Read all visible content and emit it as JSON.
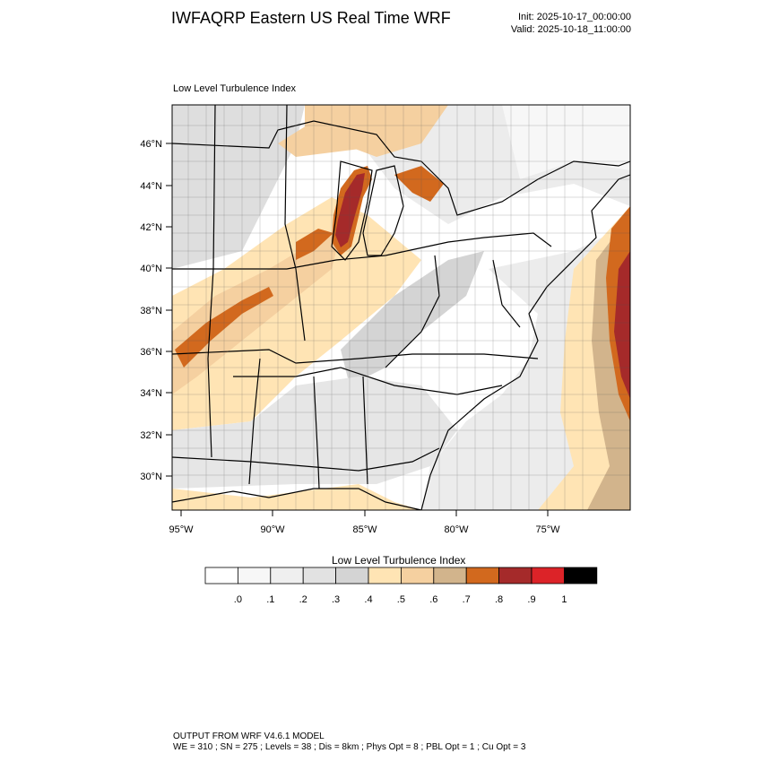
{
  "header": {
    "title": "IWFAQRP Eastern US Real Time WRF",
    "init": "Init: 2025-10-17_00:00:00",
    "valid": "Valid: 2025-10-18_11:00:00"
  },
  "plot": {
    "label": "Low Level Turbulence Index",
    "lat_ticks": [
      "46°N",
      "44°N",
      "42°N",
      "40°N",
      "38°N",
      "36°N",
      "34°N",
      "32°N",
      "30°N"
    ],
    "lon_ticks": [
      "95°W",
      "90°W",
      "85°W",
      "80°W",
      "75°W"
    ]
  },
  "colorbar": {
    "title": "Low Level Turbulence Index",
    "labels": [
      ".0",
      ".1",
      ".2",
      ".3",
      ".4",
      ".5",
      ".6",
      ".7",
      ".8",
      ".9",
      "1"
    ],
    "colors": [
      "#ffffff",
      "#f7f7f7",
      "#efefef",
      "#e2e2e2",
      "#d4d4d4",
      "#ffe4b4",
      "#f5d0a0",
      "#d2b48c",
      "#d2691e",
      "#a52a2a",
      "#dc2328",
      "#000000"
    ]
  },
  "footer": {
    "line1": "OUTPUT FROM WRF V4.6.1 MODEL",
    "line2": "WE = 310 ; SN = 275 ; Levels = 38 ; Dis = 8km ; Phys Opt = 8 ; PBL Opt = 1 ; Cu Opt = 3"
  }
}
